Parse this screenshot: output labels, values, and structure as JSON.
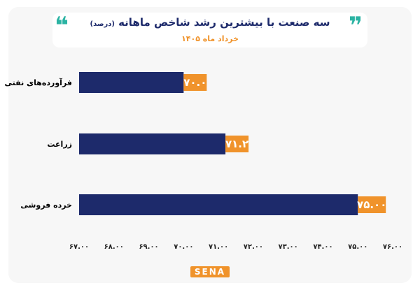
{
  "header": {
    "title": "سه صنعت با بیشترین رشد شاخص ماهانه",
    "title_note": "(درصد)",
    "subtitle": "خرداد ماه ۱۴۰۵",
    "quote_left": "❝",
    "quote_right": "❞"
  },
  "footer": {
    "logo_text": "SENA"
  },
  "colors": {
    "bar": "#1d2a6b",
    "label_bg": "#f0932b",
    "accent": "#2bb3a3"
  },
  "chart_data": {
    "type": "bar",
    "orientation": "horizontal",
    "categories": [
      "فرآورده‌های نفتی",
      "زراعت",
      "خرده فروشی"
    ],
    "values": [
      70.0,
      71.2,
      75.0
    ],
    "value_labels": [
      "۷۰.۰",
      "۷۱.۲",
      "۷۵.۰۰"
    ],
    "xlim": [
      67,
      76
    ],
    "x_ticks": [
      67,
      68,
      69,
      70,
      71,
      72,
      73,
      74,
      75,
      76
    ],
    "x_tick_labels": [
      "۶۷.۰۰",
      "۶۸.۰۰",
      "۶۹.۰۰",
      "۷۰.۰۰",
      "۷۱.۰۰",
      "۷۲.۰۰",
      "۷۳.۰۰",
      "۷۴.۰۰",
      "۷۵.۰۰",
      "۷۶.۰۰"
    ],
    "grid": false
  }
}
